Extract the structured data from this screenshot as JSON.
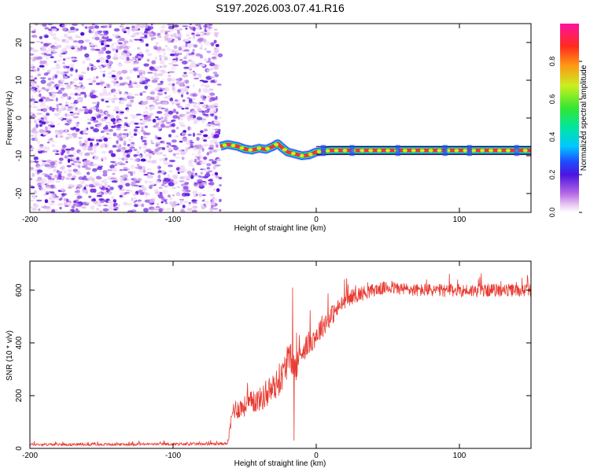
{
  "figure_title": "S197.2026.003.07.41.R16",
  "colorbar": {
    "label": "Normalized spectral amplitude",
    "ticks": [
      "0.0",
      "0.2",
      "0.4",
      "0.6",
      "0.8"
    ],
    "tick_values": [
      0.0,
      0.2,
      0.4,
      0.6,
      0.8
    ],
    "range": [
      0,
      1
    ]
  },
  "chart_data": [
    {
      "type": "heatmap",
      "title": "",
      "xlabel": "Height of straight line (km)",
      "ylabel": "Frequency (Hz)",
      "xlim": [
        -200,
        150
      ],
      "ylim": [
        -25,
        25
      ],
      "xticks": [
        -200,
        -100,
        0,
        100
      ],
      "xtick_labels": [
        "-200",
        "-100",
        "0",
        "100"
      ],
      "yticks": [
        -20,
        -10,
        0,
        10,
        20
      ],
      "ytick_labels": [
        "-20",
        "-10",
        "0",
        "10",
        "20"
      ],
      "noise_region_x": [
        -200,
        -67
      ],
      "ridge": {
        "x": [
          -67,
          -62,
          -55,
          -50,
          -45,
          -40,
          -35,
          -30,
          -27,
          -24,
          -20,
          -15,
          -10,
          -5,
          0,
          5,
          10,
          30,
          60,
          100,
          150
        ],
        "y": [
          -7.5,
          -7.0,
          -7.5,
          -8.2,
          -8.5,
          -8.0,
          -8.3,
          -7.5,
          -6.8,
          -7.8,
          -9.0,
          -9.5,
          -10.0,
          -9.8,
          -9.0,
          -8.8,
          -8.6,
          -8.6,
          -8.6,
          -8.6,
          -8.6
        ]
      }
    },
    {
      "type": "line",
      "title": "",
      "xlabel": "Height of straight line (km)",
      "ylabel": "SNR (10 * v/v)",
      "xlim": [
        -200,
        150
      ],
      "ylim": [
        0,
        710
      ],
      "xticks": [
        -200,
        -100,
        0,
        100
      ],
      "xtick_labels": [
        "-200",
        "-100",
        "0",
        "100"
      ],
      "yticks": [
        0,
        200,
        400,
        600
      ],
      "ytick_labels": [
        "0",
        "200",
        "400",
        "600"
      ],
      "color": "#e83b32",
      "series": [
        {
          "name": "SNR",
          "x": [
            -200,
            -180,
            -160,
            -140,
            -120,
            -100,
            -80,
            -62,
            -60,
            -58,
            -55,
            -50,
            -45,
            -40,
            -35,
            -30,
            -25,
            -22,
            -20,
            -17,
            -15,
            -10,
            -5,
            0,
            5,
            10,
            15,
            20,
            25,
            30,
            40,
            50,
            60,
            70,
            80,
            90,
            100,
            110,
            120,
            130,
            140,
            150
          ],
          "y": [
            15,
            15,
            15,
            15,
            16,
            16,
            17,
            18,
            80,
            150,
            150,
            160,
            175,
            185,
            200,
            230,
            260,
            300,
            330,
            340,
            300,
            370,
            400,
            430,
            470,
            500,
            530,
            560,
            575,
            585,
            600,
            610,
            605,
            600,
            600,
            598,
            600,
            598,
            600,
            600,
            598,
            600
          ],
          "spread": [
            10,
            10,
            10,
            10,
            10,
            10,
            10,
            10,
            50,
            80,
            80,
            80,
            90,
            90,
            100,
            110,
            110,
            120,
            120,
            120,
            120,
            90,
            90,
            90,
            90,
            80,
            70,
            60,
            60,
            60,
            50,
            50,
            50,
            50,
            50,
            50,
            50,
            50,
            50,
            50,
            50,
            50
          ],
          "spikes": [
            {
              "x": -16.5,
              "y": 610
            },
            {
              "x": -15.5,
              "y": 30
            }
          ]
        }
      ]
    }
  ]
}
